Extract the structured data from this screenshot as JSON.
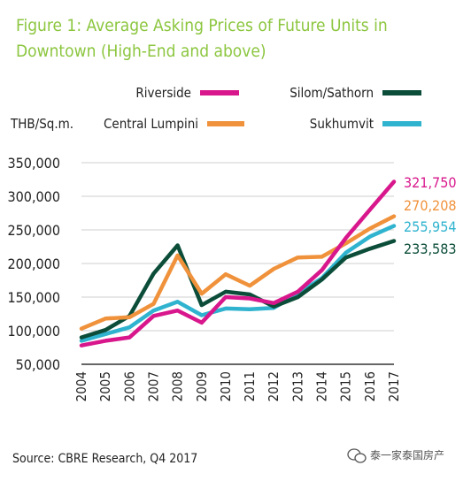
{
  "title_line1": "Figure 1: Average Asking Prices of Future Units in",
  "title_line2": "Downtown (High-End and above)",
  "source": "Source: CBRE Research, Q4 2017",
  "watermark": "泰一家泰国房产",
  "colors": {
    "title": "#8cc63f",
    "riverside": "#d8178c",
    "central_lumpini": "#f0923b",
    "silom_sathorn": "#0b4d39",
    "sukhumvit": "#2fb3cf",
    "grid": "#cfcfcf"
  },
  "chart_data": {
    "type": "line",
    "ylabel": "THB/Sq.m.",
    "x": [
      "2004",
      "2005",
      "2006",
      "2007",
      "2008",
      "2009",
      "2010",
      "2011",
      "2012",
      "2013",
      "2014",
      "2015",
      "2016",
      "2017"
    ],
    "ylim": [
      50000,
      350000
    ],
    "yticks": [
      "50,000",
      "100,000",
      "150,000",
      "200,000",
      "250,000",
      "300,000",
      "350,000"
    ],
    "ytick_values": [
      50000,
      100000,
      150000,
      200000,
      250000,
      300000,
      350000
    ],
    "grid": true,
    "legend_position": "top",
    "series": [
      {
        "key": "riverside",
        "name": "Riverside",
        "end_label": "321,750",
        "values": [
          78000,
          85000,
          90000,
          122000,
          130000,
          112000,
          150000,
          148000,
          141000,
          158000,
          190000,
          238000,
          280000,
          321750
        ]
      },
      {
        "key": "central_lumpini",
        "name": "Central Lumpini",
        "end_label": "270,208",
        "values": [
          103000,
          118000,
          120000,
          140000,
          212000,
          155000,
          184000,
          167000,
          192000,
          209000,
          210000,
          230000,
          252000,
          270208
        ]
      },
      {
        "key": "silom_sathorn",
        "name": "Silom/Sathorn",
        "end_label": "233,583",
        "values": [
          90000,
          101000,
          122000,
          185000,
          227000,
          138000,
          158000,
          154000,
          136000,
          150000,
          176000,
          209000,
          222000,
          233583
        ]
      },
      {
        "key": "sukhumvit",
        "name": "Sukhumvit",
        "end_label": "255,954",
        "values": [
          85000,
          95000,
          105000,
          130000,
          143000,
          123000,
          133000,
          132000,
          134000,
          155000,
          178000,
          216000,
          240000,
          255954
        ]
      }
    ]
  }
}
